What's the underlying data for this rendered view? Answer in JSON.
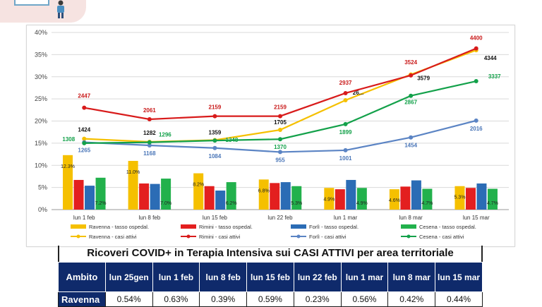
{
  "chart_data": {
    "type": "bar+line",
    "categories": [
      "lun 1 feb",
      "lun 8 feb",
      "lun 15 feb",
      "lun 22 feb",
      "lun 1 mar",
      "lun 8 mar",
      "lun 15 mar"
    ],
    "y_ticks": [
      "0%",
      "5%",
      "10%",
      "15%",
      "20%",
      "25%",
      "30%",
      "35%",
      "40%"
    ],
    "ylim": [
      0,
      40
    ],
    "grid": true,
    "legend_position": "bottom",
    "bar_series": [
      {
        "name": "Ravenna - tasso ospedal.",
        "color": "#f5c000",
        "values": [
          12.3,
          11.0,
          8.2,
          6.8,
          4.9,
          4.6,
          5.3
        ],
        "labels": [
          "12.3%",
          "11.0%",
          "8.2%",
          "6.8%",
          "4.9%",
          "4.6%",
          "5.3%"
        ]
      },
      {
        "name": "Rimini - tasso ospedal.",
        "color": "#e31f1f",
        "values": [
          6.7,
          5.9,
          5.3,
          6.0,
          4.6,
          5.2,
          4.9
        ],
        "labels": [
          "",
          "",
          "",
          "",
          "",
          "",
          ""
        ]
      },
      {
        "name": "Forlì - tasso ospedal.",
        "color": "#2b6cb5",
        "values": [
          5.4,
          5.8,
          4.3,
          6.2,
          6.7,
          6.6,
          5.9
        ],
        "labels": [
          "",
          "",
          "",
          "",
          "",
          "",
          ""
        ]
      },
      {
        "name": "Cesena - tasso ospedal.",
        "color": "#22b14c",
        "values": [
          7.2,
          7.0,
          6.2,
          5.3,
          4.9,
          4.7,
          4.7
        ],
        "labels": [
          "7.2%",
          "7.0%",
          "6.2%",
          "5.3%",
          "4.9%",
          "4.7%",
          "4.7%"
        ]
      }
    ],
    "line_series": [
      {
        "name": "Ravenna - casi attivi",
        "color": "#f5c000",
        "values": [
          16.0,
          15.3,
          15.7,
          18.0,
          24.7,
          30.5,
          36.0
        ],
        "labels": [
          "1424",
          "1282",
          "1359",
          "1705",
          "26...",
          "3579",
          "4344"
        ],
        "label_color": "#111111"
      },
      {
        "name": "Rimini - casi attivi",
        "color": "#d81b1b",
        "values": [
          23.0,
          20.4,
          21.1,
          21.1,
          26.3,
          30.3,
          36.4
        ],
        "labels": [
          "2447",
          "2061",
          "2159",
          "2159",
          "2937",
          "3524",
          "4400"
        ],
        "label_color": "#c91a1a"
      },
      {
        "name": "Forlì - casi attivi",
        "color": "#5b84c4",
        "values": [
          15.2,
          14.5,
          13.9,
          13.0,
          13.4,
          16.3,
          20.1
        ],
        "labels": [
          "1265",
          "1168",
          "1084",
          "955",
          "1001",
          "1454",
          "2016"
        ],
        "label_color": "#4a76b8"
      },
      {
        "name": "Cesena - casi attivi",
        "color": "#13a14a",
        "values": [
          15.0,
          15.2,
          15.6,
          15.9,
          19.3,
          25.7,
          29.0
        ],
        "labels": [
          "1308",
          "1296",
          "1348",
          "1370",
          "1899",
          "2867",
          "3337"
        ],
        "label_color": "#13a14a"
      }
    ]
  },
  "table": {
    "title": "Ricoveri COVID+ in Terapia Intensiva sui CASI ATTIVI per area territoriale",
    "headers": [
      "Ambito",
      "lun 25gen",
      "lun 1 feb",
      "lun 8 feb",
      "lun 15 feb",
      "lun 22 feb",
      "lun 1 mar",
      "lun 8 mar",
      "lun 15 mar"
    ],
    "rows": [
      {
        "area": "Ravenna",
        "values": [
          "0.54%",
          "0.63%",
          "0.39%",
          "0.59%",
          "0.23%",
          "0.56%",
          "0.42%",
          "0.44%"
        ]
      }
    ]
  }
}
